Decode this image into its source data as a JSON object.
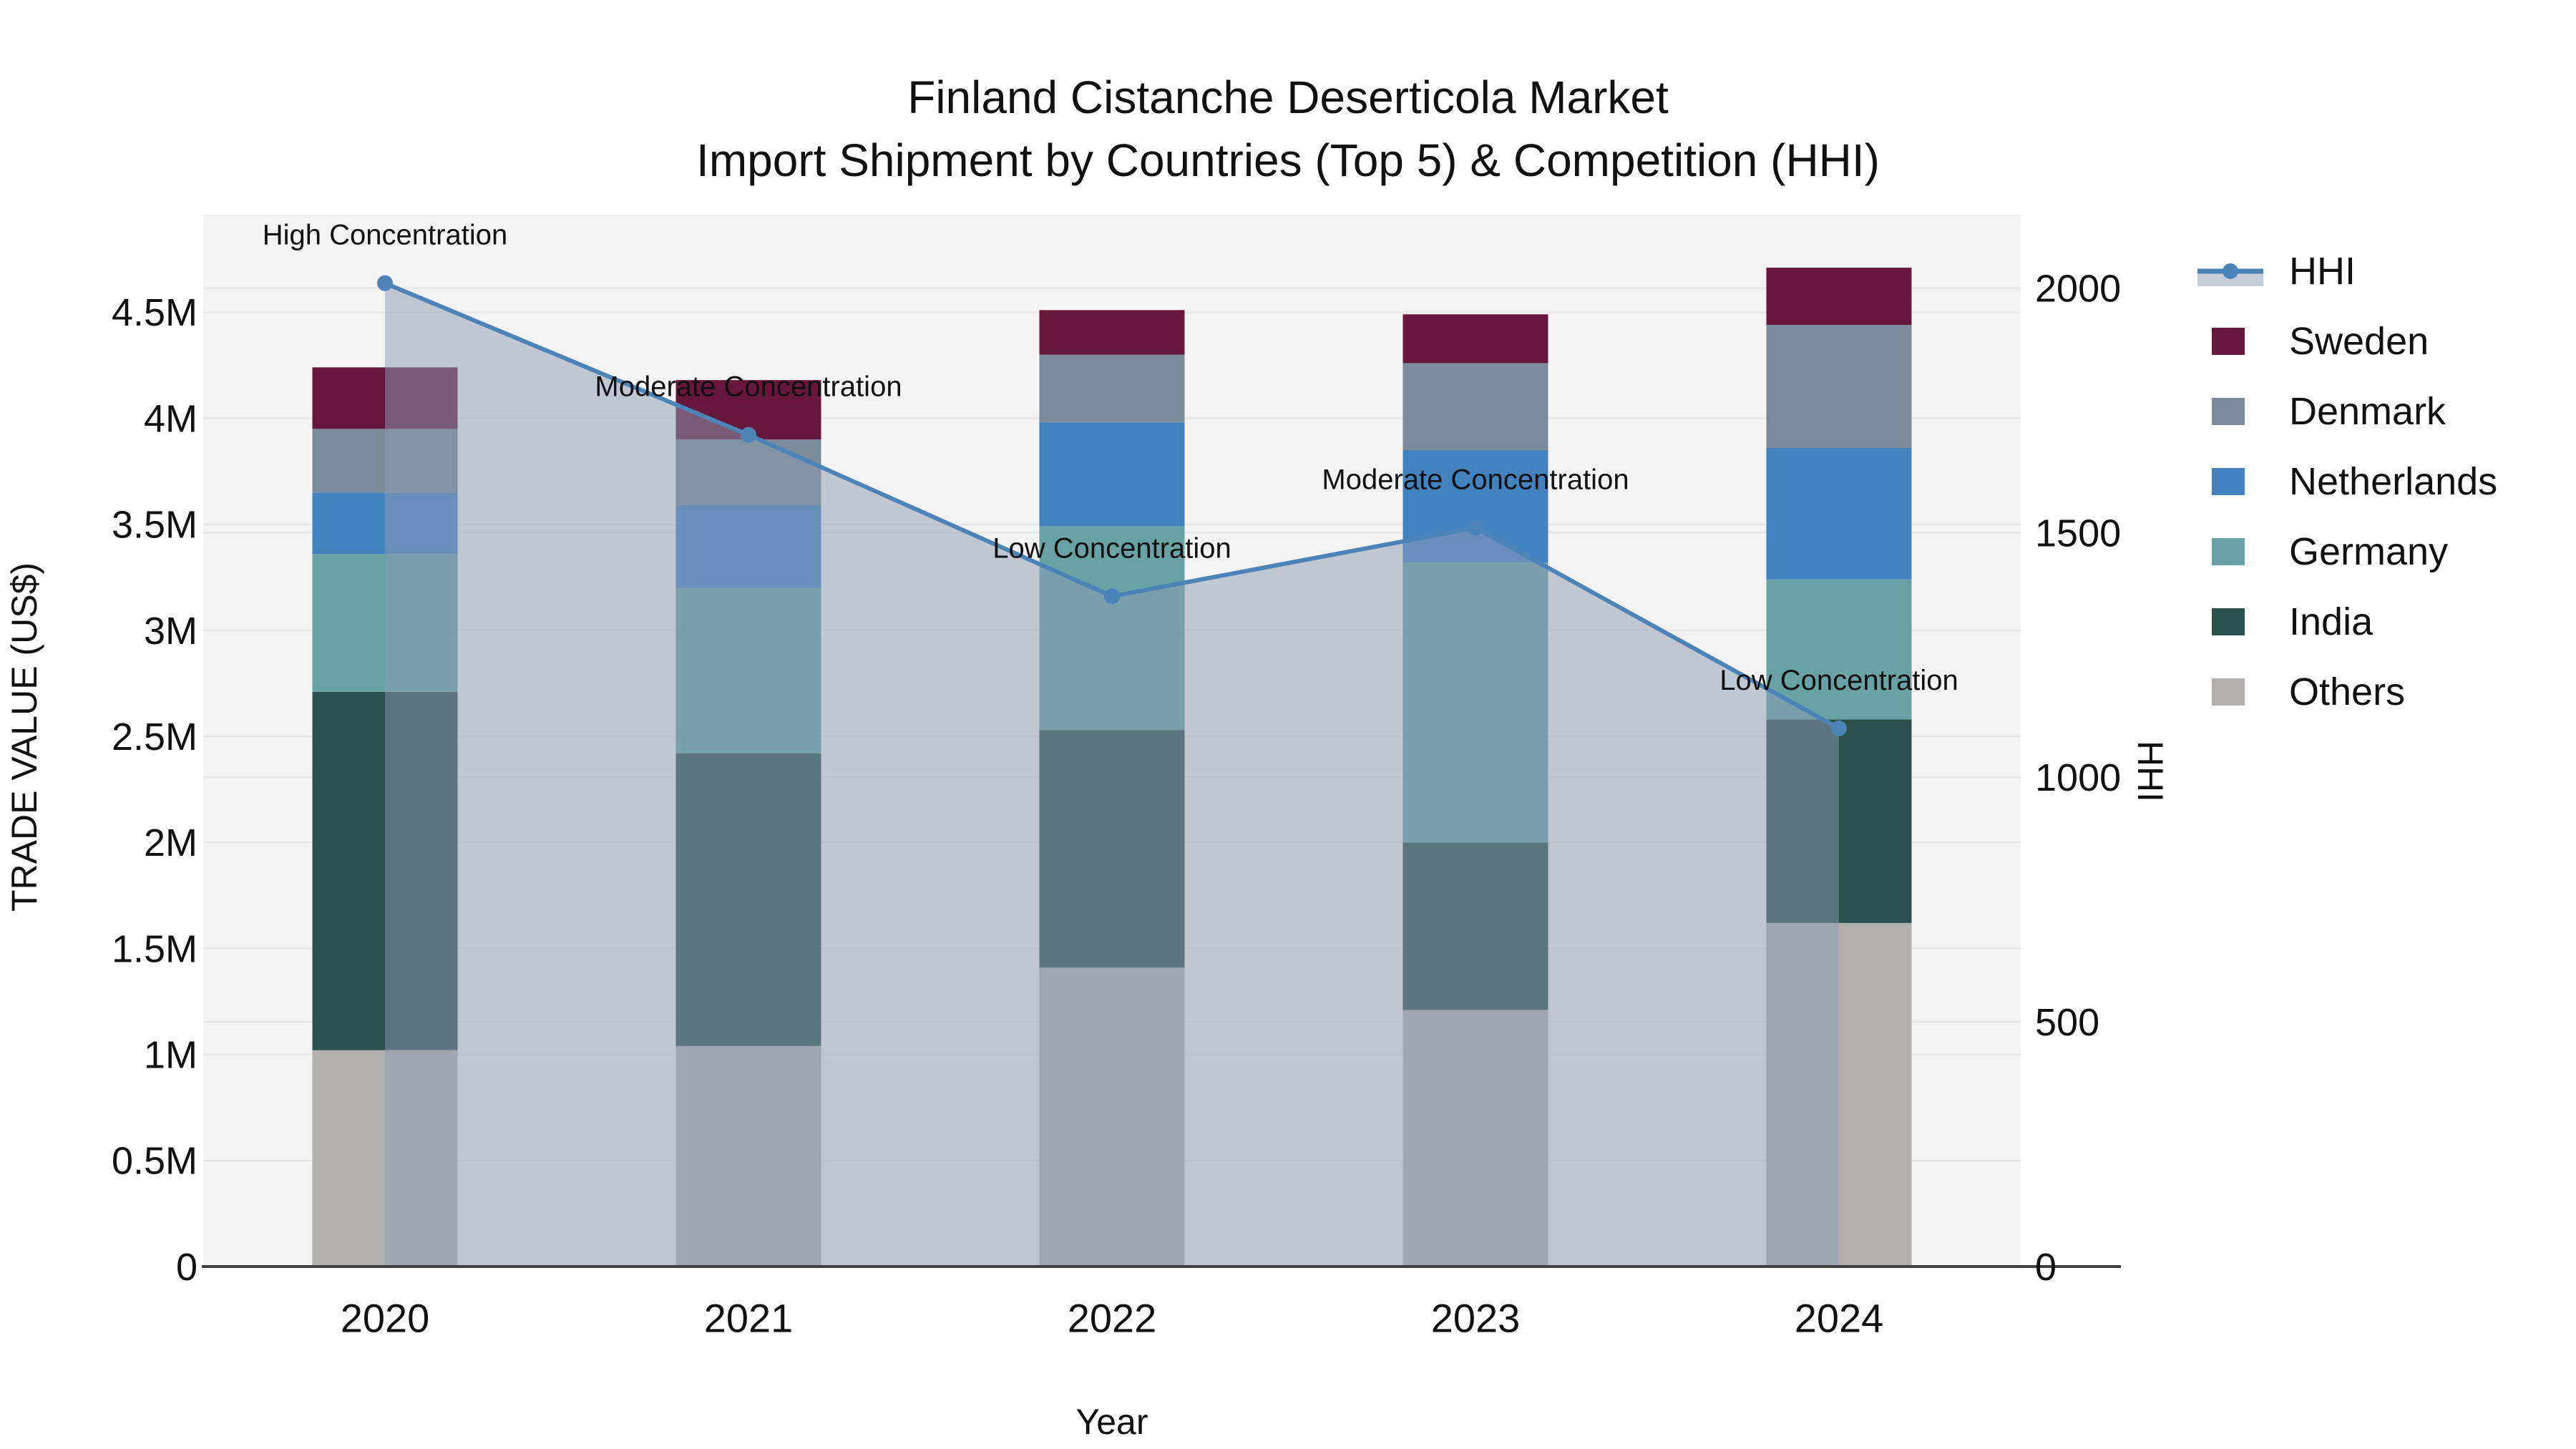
{
  "title": {
    "line1": "Finland Cistanche Deserticola Market",
    "line2": "Import Shipment by Countries (Top 5) & Competition (HHI)"
  },
  "chart_data": {
    "type": "stacked-bar+line",
    "categories": [
      "2020",
      "2021",
      "2022",
      "2023",
      "2024"
    ],
    "xlabel": "Year",
    "ylabel_left": "TRADE VALUE (US$)",
    "ylabel_right": "HHI",
    "bar_value_unit": "million US$",
    "series": [
      {
        "name": "Sweden",
        "color": "#67183a",
        "values": [
          0.29,
          0.28,
          0.21,
          0.23,
          0.27
        ]
      },
      {
        "name": "Denmark",
        "color": "#7b8b99",
        "values": [
          0.3,
          0.31,
          0.32,
          0.41,
          0.58
        ]
      },
      {
        "name": "Netherlands",
        "color": "#4282bf",
        "values": [
          0.29,
          0.39,
          0.49,
          0.53,
          0.62
        ]
      },
      {
        "name": "Germany",
        "color": "#68a2a4",
        "values": [
          0.65,
          0.78,
          0.96,
          1.32,
          0.66
        ]
      },
      {
        "name": "India",
        "color": "#2c504c",
        "values": [
          1.69,
          1.38,
          1.12,
          0.79,
          0.96
        ]
      },
      {
        "name": "Others",
        "color": "#b1b0ae",
        "values": [
          1.02,
          1.04,
          1.41,
          1.21,
          1.62
        ]
      }
    ],
    "stack_order": "bottom-to-top is reverse of series list",
    "bar_totals": [
      4.24,
      4.18,
      4.51,
      4.49,
      4.71
    ],
    "line_series": {
      "name": "HHI",
      "color": "#4d84b8",
      "area_fill_color": "rgba(140,155,180,0.5)",
      "values": [
        2010,
        1700,
        1370,
        1510,
        1100
      ]
    },
    "annotations": [
      {
        "category": "2020",
        "text": "High Concentration"
      },
      {
        "category": "2021",
        "text": "Moderate Concentration"
      },
      {
        "category": "2022",
        "text": "Low Concentration"
      },
      {
        "category": "2023",
        "text": "Moderate Concentration"
      },
      {
        "category": "2024",
        "text": "Low Concentration"
      }
    ],
    "yaxis_left": {
      "range": [
        0,
        4.96
      ],
      "ticks": [
        {
          "v": 0,
          "label": "0"
        },
        {
          "v": 0.5,
          "label": "0.5M"
        },
        {
          "v": 1,
          "label": "1M"
        },
        {
          "v": 1.5,
          "label": "1.5M"
        },
        {
          "v": 2,
          "label": "2M"
        },
        {
          "v": 2.5,
          "label": "2.5M"
        },
        {
          "v": 3,
          "label": "3M"
        },
        {
          "v": 3.5,
          "label": "3.5M"
        },
        {
          "v": 4,
          "label": "4M"
        },
        {
          "v": 4.5,
          "label": "4.5M"
        }
      ]
    },
    "yaxis_right": {
      "range": [
        0,
        2150
      ],
      "ticks": [
        {
          "v": 0,
          "label": "0"
        },
        {
          "v": 500,
          "label": "500"
        },
        {
          "v": 1000,
          "label": "1000"
        },
        {
          "v": 1500,
          "label": "1500"
        },
        {
          "v": 2000,
          "label": "2000"
        }
      ]
    },
    "grid": true,
    "legend_position": "right",
    "legend_items": [
      "HHI",
      "Sweden",
      "Denmark",
      "Netherlands",
      "Germany",
      "India",
      "Others"
    ],
    "style": {
      "plot_bg": "#f3f3f3",
      "figure_bg": "#ffffff",
      "gridline_color": "#e7e7e7",
      "axis_line_color": "#3f3f3f",
      "text_color": "#111111"
    }
  }
}
